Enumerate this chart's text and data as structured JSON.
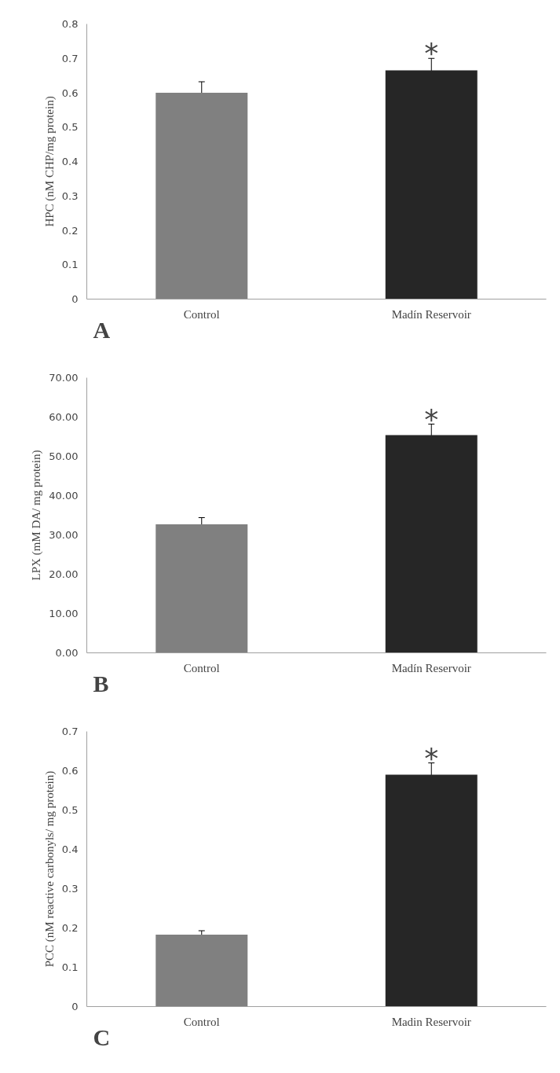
{
  "chart_data": [
    {
      "type": "bar",
      "categories": [
        "Control",
        "Madín Reservoir"
      ],
      "ylabel": "HPC (nM CHP/mg protein)",
      "colors": [
        "#808080",
        "#262626"
      ],
      "values": [
        0.6,
        0.665
      ],
      "errors": [
        0.032,
        0.035
      ],
      "ylim": [
        0,
        0.8
      ],
      "yticks": [
        0,
        0.1,
        0.2,
        0.3,
        0.4,
        0.5,
        0.6,
        0.7,
        0.8
      ],
      "grid": false,
      "annotations": [
        {
          "text": "*",
          "x": "Madín Reservoir",
          "y": 0.7
        },
        "A"
      ]
    },
    {
      "type": "bar",
      "categories": [
        "Control",
        "Madín Reservoir"
      ],
      "ylabel": "LPX (mM DA/ mg protein)",
      "colors": [
        "#808080",
        "#262626"
      ],
      "values": [
        32.7,
        55.4
      ],
      "errors": [
        1.7,
        2.8
      ],
      "ylim": [
        0,
        70
      ],
      "yticks": [
        {
          "value": 0,
          "label": "0.00"
        },
        {
          "value": 10,
          "label": "10.00"
        },
        {
          "value": 20,
          "label": "20.00"
        },
        {
          "value": 30,
          "label": "30.00"
        },
        {
          "value": 40,
          "label": "40.00"
        },
        {
          "value": 50,
          "label": "50.00"
        },
        {
          "value": 60,
          "label": "60.00"
        },
        {
          "value": 70,
          "label": "70.00"
        }
      ],
      "grid": false,
      "annotations": [
        {
          "text": "*",
          "x": "Madín Reservoir",
          "y": 58.2
        },
        "B"
      ]
    },
    {
      "type": "bar",
      "categories": [
        "Control",
        "Madin Reservoir"
      ],
      "ylabel": "PCC (nM reactive carbonyls/ mg protein)",
      "colors": [
        "#808080",
        "#262626"
      ],
      "values": [
        0.183,
        0.59
      ],
      "errors": [
        0.01,
        0.03
      ],
      "ylim": [
        0,
        0.7
      ],
      "yticks": [
        0,
        0.1,
        0.2,
        0.3,
        0.4,
        0.5,
        0.6,
        0.7
      ],
      "grid": false,
      "annotations": [
        {
          "text": "*",
          "x": "Madin Reservoir",
          "y": 0.62
        },
        "C"
      ]
    }
  ]
}
